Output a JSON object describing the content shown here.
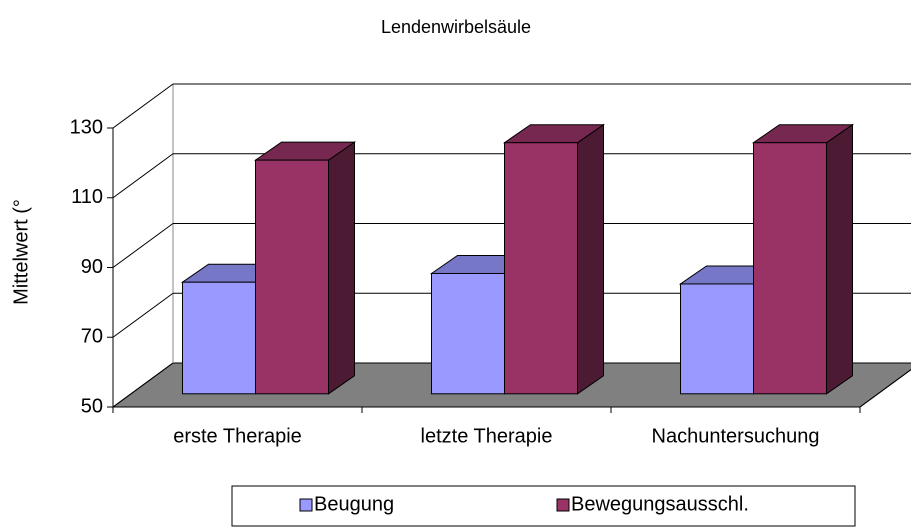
{
  "chart_data": {
    "type": "bar3d",
    "title": "Lendenwirbelsäule",
    "y_label": "Mittelwert (°",
    "categories": [
      "erste Therapie",
      "letzte Therapie",
      "Nachuntersuchung"
    ],
    "series": [
      {
        "name": "Beugung",
        "color": "#9999ff",
        "values": [
          82,
          84.5,
          81.5
        ]
      },
      {
        "name": "Bewegungsausschl.",
        "color": "#993366",
        "values": [
          117,
          122,
          122
        ]
      }
    ],
    "ylim": [
      50,
      130
    ],
    "yticks": [
      50,
      70,
      90,
      110,
      130
    ],
    "grid": true,
    "legend": "bottom"
  }
}
